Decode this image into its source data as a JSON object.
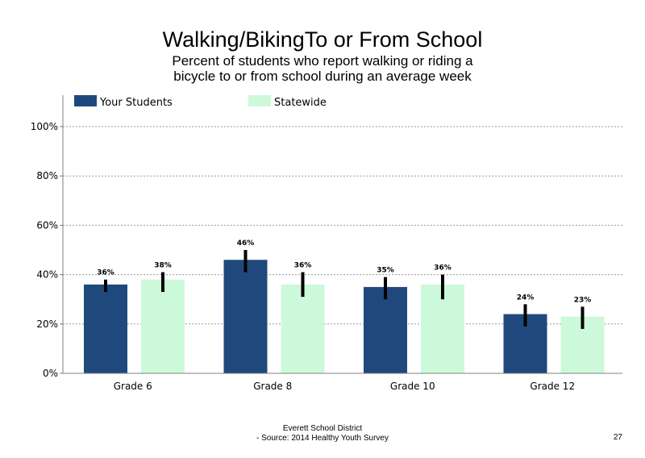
{
  "chart_data": {
    "type": "bar",
    "title": "Walking/BikingTo or From School",
    "subtitle": "Percent of students who report walking or riding a bicycle to or from school during an average week",
    "categories": [
      "Grade 6",
      "Grade 8",
      "Grade 10",
      "Grade 12"
    ],
    "series": [
      {
        "name": "Your Students",
        "color": "#1f497d",
        "values": [
          36,
          46,
          35,
          24
        ],
        "labels": [
          "36%",
          "46%",
          "35%",
          "24%"
        ],
        "error_low": [
          33,
          41,
          30,
          19
        ],
        "error_high": [
          38,
          50,
          39,
          28
        ]
      },
      {
        "name": "Statewide",
        "color": "#ccf9da",
        "values": [
          38,
          36,
          36,
          23
        ],
        "labels": [
          "38%",
          "36%",
          "36%",
          "23%"
        ],
        "error_low": [
          33,
          31,
          30,
          18
        ],
        "error_high": [
          41,
          41,
          40,
          27
        ]
      }
    ],
    "ylim": [
      0,
      110
    ],
    "yticks": [
      0,
      20,
      40,
      60,
      80,
      100
    ],
    "ytick_labels": [
      "0%",
      "20%",
      "40%",
      "60%",
      "80%",
      "100%"
    ],
    "grid": "horizontal dotted",
    "legend": "top-left"
  },
  "footer": {
    "line1": "Everett School District",
    "line2": "- Source: 2014 Healthy  Youth Survey",
    "page_number": "27"
  }
}
